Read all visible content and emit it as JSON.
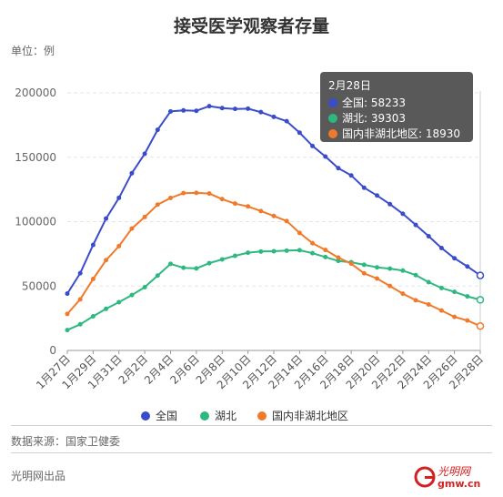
{
  "header": {
    "title": "接受医学观察者存量",
    "unit": "单位：例"
  },
  "footer": {
    "source": "数据来源：国家卫健委",
    "publisher": "光明网出品"
  },
  "logo": {
    "text": "光明网",
    "sub": "gmw.cn"
  },
  "tooltip": {
    "date": "2月28日",
    "rows": [
      {
        "label": "全国: 58233",
        "color": "#3a4ccb"
      },
      {
        "label": "湖北: 39303",
        "color": "#2db87f"
      },
      {
        "label": "国内非湖北地区: 18930",
        "color": "#f07a2a"
      }
    ]
  },
  "chart_data": {
    "type": "line",
    "title": "接受医学观察者存量",
    "ylim": [
      0,
      200000
    ],
    "yticks": [
      0,
      50000,
      100000,
      150000,
      200000
    ],
    "grid": true,
    "legend_position": "bottom",
    "x": [
      "1月27日",
      "1月28日",
      "1月29日",
      "1月30日",
      "1月31日",
      "2月1日",
      "2月2日",
      "2月3日",
      "2月4日",
      "2月5日",
      "2月6日",
      "2月7日",
      "2月8日",
      "2月9日",
      "2月10日",
      "2月11日",
      "2月12日",
      "2月13日",
      "2月14日",
      "2月15日",
      "2月16日",
      "2月17日",
      "2月18日",
      "2月19日",
      "2月20日",
      "2月21日",
      "2月22日",
      "2月23日",
      "2月24日",
      "2月25日",
      "2月26日",
      "2月27日",
      "2月28日"
    ],
    "xtick_labels": [
      "1月27日",
      "1月29日",
      "1月31日",
      "2月2日",
      "2月4日",
      "2月6日",
      "2月8日",
      "2月10日",
      "2月12日",
      "2月14日",
      "2月16日",
      "2月18日",
      "2月20日",
      "2月22日",
      "2月24日",
      "2月26日",
      "2月28日"
    ],
    "series": [
      {
        "name": "全国",
        "color": "#3a4ccb",
        "values": [
          44132,
          59990,
          81947,
          102427,
          118478,
          137594,
          152700,
          171329,
          185555,
          186354,
          186045,
          189660,
          188183,
          187518,
          187728,
          185037,
          181386,
          177984,
          169039,
          158764,
          150539,
          141552,
          135881,
          126363,
          120302,
          113564,
          106089,
          97481,
          88716,
          79515,
          71572,
          65225,
          58233
        ]
      },
      {
        "name": "湖北",
        "color": "#2db87f",
        "values": [
          15800,
          20300,
          26500,
          32300,
          37500,
          43000,
          49100,
          58100,
          67200,
          64200,
          63700,
          67800,
          70700,
          73500,
          75900,
          76800,
          77000,
          77500,
          77800,
          75500,
          72500,
          69500,
          68500,
          66500,
          64500,
          63500,
          62000,
          58500,
          53000,
          48500,
          45500,
          42000,
          39303
        ]
      },
      {
        "name": "国内非湖北地区",
        "color": "#f07a2a",
        "values": [
          28332,
          39690,
          55447,
          70127,
          80978,
          94594,
          103600,
          113229,
          118355,
          122154,
          122345,
          121860,
          117483,
          114018,
          111828,
          108237,
          104386,
          100484,
          91239,
          83264,
          78039,
          72052,
          67381,
          59863,
          55802,
          50064,
          44089,
          38981,
          35716,
          31015,
          26072,
          23225,
          18930
        ]
      }
    ]
  }
}
